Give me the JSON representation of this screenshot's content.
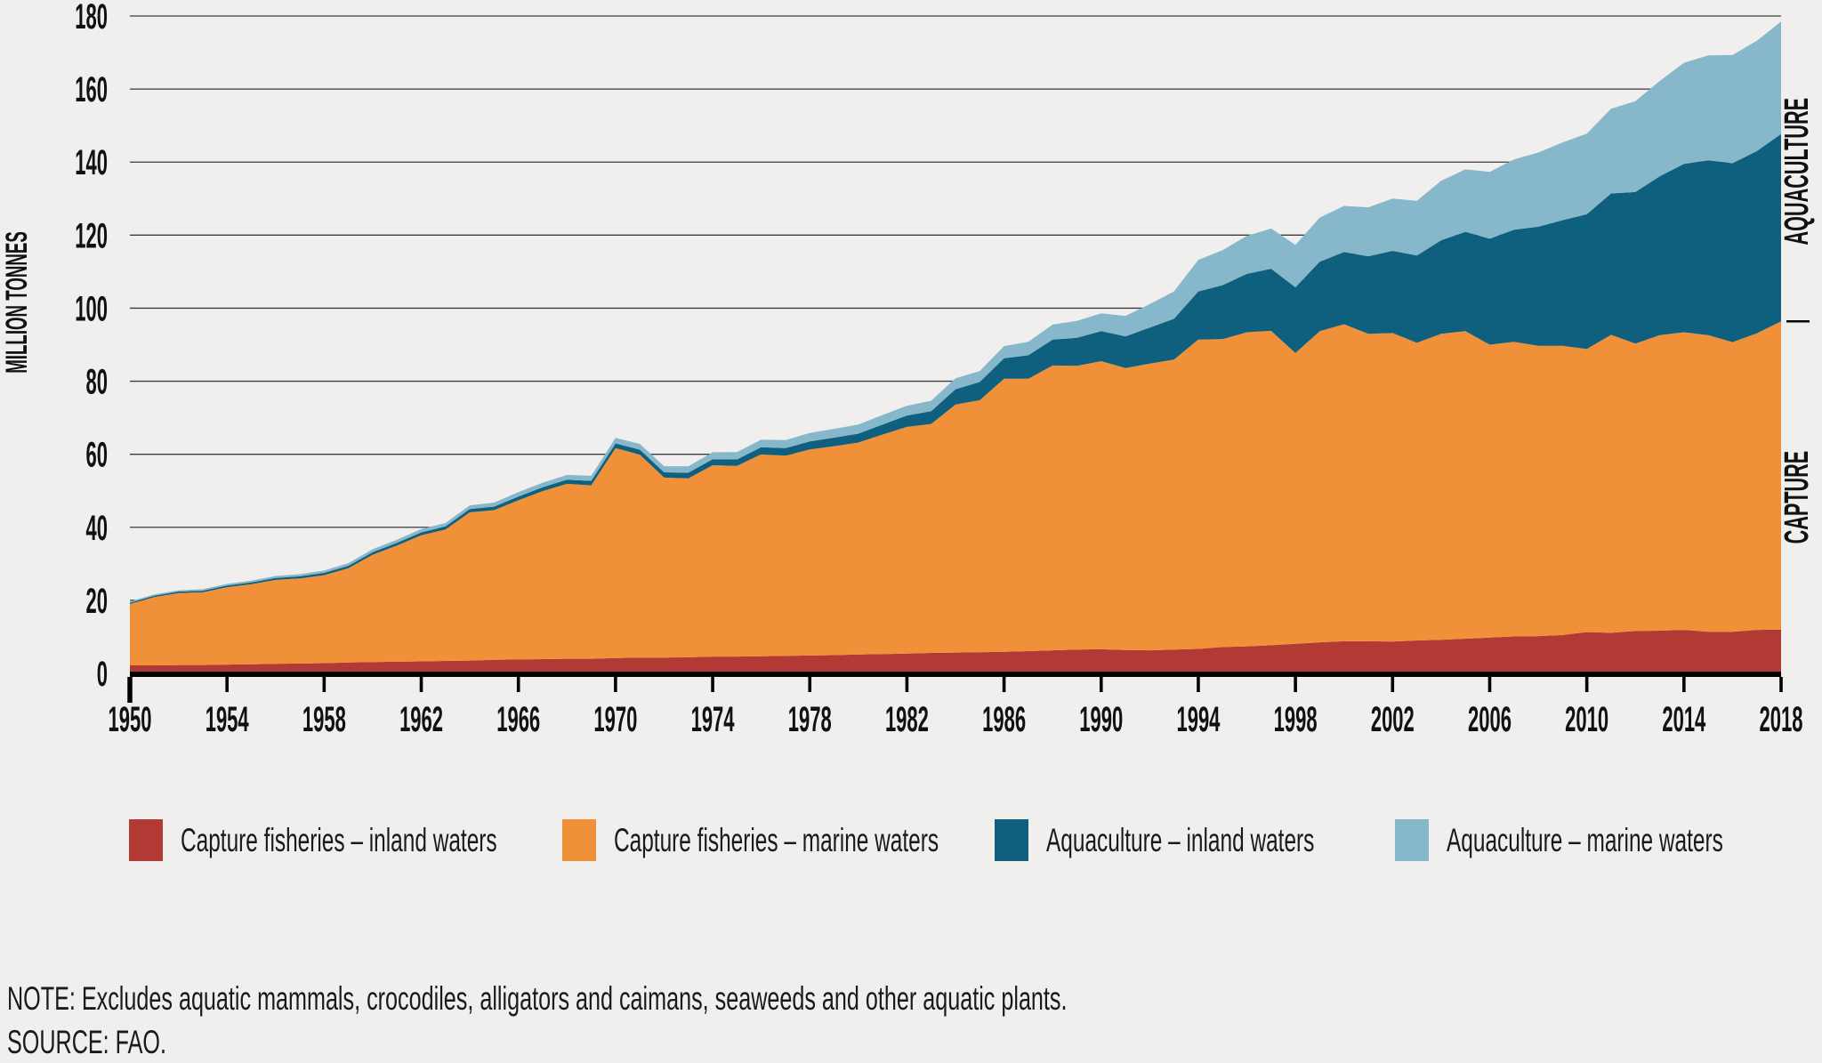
{
  "figure": {
    "note": "NOTE: Excludes aquatic mammals, crocodiles, alligators and caimans, seaweeds and other aquatic plants.",
    "source": "SOURCE: FAO.",
    "background_color": "#F0EFED",
    "gridline_color": "#3C3C3C",
    "axis_color": "#000000"
  },
  "chart_data": {
    "type": "area",
    "stacked": true,
    "title": "",
    "xlabel": "",
    "ylabel": "MILLION TONNES",
    "ylim": [
      0,
      180
    ],
    "y_ticks": [
      0,
      20,
      40,
      60,
      80,
      100,
      120,
      140,
      160,
      180
    ],
    "x_ticks": [
      1950,
      1954,
      1958,
      1962,
      1966,
      1970,
      1974,
      1978,
      1982,
      1986,
      1990,
      1994,
      1998,
      2002,
      2006,
      2010,
      2014,
      2018
    ],
    "grid": true,
    "legend_position": "bottom",
    "right_labels": [
      "AQUACULTURE",
      "CAPTURE"
    ],
    "x": [
      1950,
      1951,
      1952,
      1953,
      1954,
      1955,
      1956,
      1957,
      1958,
      1959,
      1960,
      1961,
      1962,
      1963,
      1964,
      1965,
      1966,
      1967,
      1968,
      1969,
      1970,
      1971,
      1972,
      1973,
      1974,
      1975,
      1976,
      1977,
      1978,
      1979,
      1980,
      1981,
      1982,
      1983,
      1984,
      1985,
      1986,
      1987,
      1988,
      1989,
      1990,
      1991,
      1992,
      1993,
      1994,
      1995,
      1996,
      1997,
      1998,
      1999,
      2000,
      2001,
      2002,
      2003,
      2004,
      2005,
      2006,
      2007,
      2008,
      2009,
      2010,
      2011,
      2012,
      2013,
      2014,
      2015,
      2016,
      2017,
      2018
    ],
    "series": [
      {
        "name": "Capture fisheries – inland waters",
        "color": "#B23934",
        "values": [
          2.2,
          2.2,
          2.3,
          2.3,
          2.4,
          2.5,
          2.6,
          2.7,
          2.8,
          3.0,
          3.1,
          3.2,
          3.3,
          3.4,
          3.5,
          3.7,
          3.8,
          3.9,
          4.0,
          4.0,
          4.2,
          4.3,
          4.3,
          4.4,
          4.6,
          4.6,
          4.7,
          4.8,
          4.9,
          5.0,
          5.2,
          5.3,
          5.4,
          5.6,
          5.7,
          5.8,
          5.9,
          6.1,
          6.3,
          6.5,
          6.6,
          6.4,
          6.3,
          6.5,
          6.7,
          7.2,
          7.4,
          7.7,
          8.1,
          8.5,
          8.8,
          8.8,
          8.7,
          9.0,
          9.2,
          9.5,
          9.8,
          10.1,
          10.2,
          10.5,
          11.3,
          11.1,
          11.6,
          11.7,
          11.9,
          11.4,
          11.4,
          11.9,
          12.0
        ]
      },
      {
        "name": "Capture fisheries – marine waters",
        "color": "#F0913A",
        "values": [
          16.8,
          18.7,
          19.7,
          19.9,
          21.2,
          21.9,
          23.0,
          23.3,
          24.1,
          25.8,
          29.4,
          31.8,
          34.5,
          36.0,
          40.6,
          41.0,
          43.6,
          46.0,
          47.9,
          47.5,
          57.5,
          55.6,
          49.3,
          49.0,
          52.4,
          52.2,
          55.3,
          54.8,
          56.4,
          57.2,
          58.0,
          60.1,
          62.1,
          62.7,
          67.9,
          69.0,
          74.8,
          74.6,
          78.0,
          77.7,
          78.9,
          77.2,
          78.5,
          79.4,
          84.7,
          84.3,
          86.0,
          86.1,
          79.6,
          85.2,
          86.8,
          84.2,
          84.5,
          81.5,
          83.8,
          84.2,
          80.2,
          80.7,
          79.5,
          79.2,
          77.5,
          81.6,
          78.7,
          80.9,
          81.5,
          81.2,
          79.3,
          81.2,
          84.4
        ]
      },
      {
        "name": "Aquaculture – inland waters",
        "color": "#0F5F7E",
        "values": [
          0.35,
          0.37,
          0.4,
          0.43,
          0.46,
          0.5,
          0.54,
          0.58,
          0.62,
          0.66,
          0.7,
          0.75,
          0.8,
          0.85,
          0.9,
          0.96,
          1.02,
          1.08,
          1.14,
          1.2,
          1.27,
          1.35,
          1.44,
          1.54,
          1.65,
          1.78,
          1.92,
          2.07,
          2.22,
          2.35,
          2.45,
          2.75,
          3.1,
          3.5,
          4.2,
          5.0,
          5.6,
          6.4,
          7.1,
          7.7,
          8.2,
          8.7,
          9.9,
          11.2,
          13.2,
          14.8,
          16.0,
          17.0,
          18.0,
          19.0,
          19.8,
          21.2,
          22.5,
          23.9,
          25.6,
          27.2,
          29.0,
          30.7,
          32.6,
          34.4,
          36.9,
          38.7,
          41.5,
          43.5,
          46.1,
          47.9,
          49.0,
          49.9,
          51.3
        ]
      },
      {
        "name": "Aquaculture – marine waters",
        "color": "#86B7CA",
        "values": [
          0.3,
          0.33,
          0.36,
          0.4,
          0.44,
          0.48,
          0.53,
          0.58,
          0.64,
          0.72,
          0.8,
          0.85,
          0.9,
          0.95,
          1.0,
          1.1,
          1.2,
          1.25,
          1.3,
          1.4,
          1.5,
          1.6,
          1.7,
          1.8,
          1.9,
          2.0,
          2.1,
          2.2,
          2.3,
          2.4,
          2.5,
          2.6,
          2.7,
          2.85,
          3.0,
          3.0,
          3.3,
          3.7,
          4.1,
          4.6,
          4.9,
          5.6,
          6.4,
          7.5,
          8.6,
          9.6,
          10.4,
          11.0,
          11.6,
          12.1,
          12.6,
          13.4,
          14.3,
          15.0,
          16.3,
          17.1,
          18.3,
          19.2,
          20.3,
          21.3,
          22.1,
          23.2,
          24.9,
          26.1,
          27.7,
          28.7,
          29.6,
          30.2,
          30.8
        ]
      }
    ]
  }
}
